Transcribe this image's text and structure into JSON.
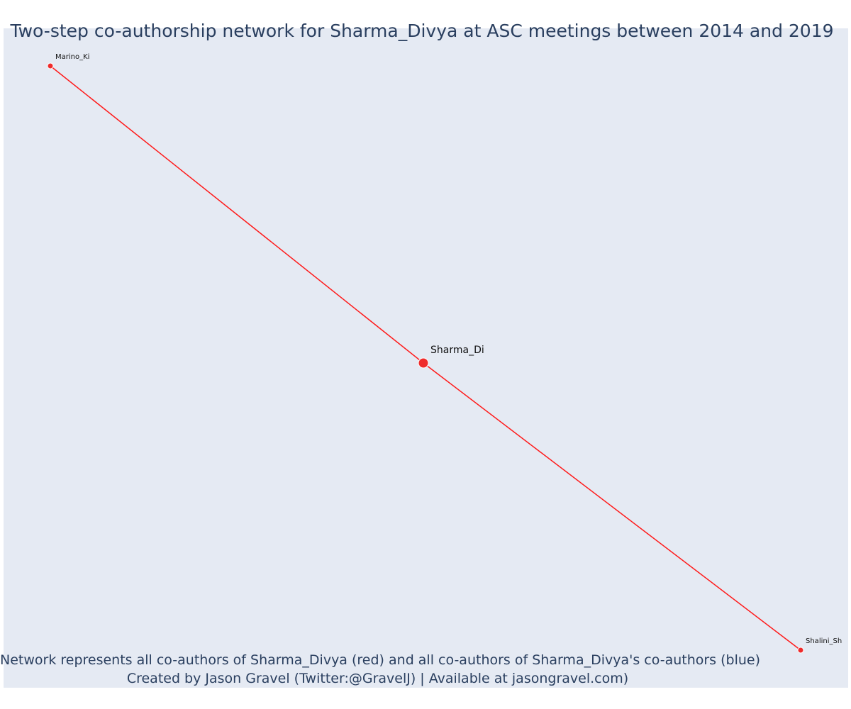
{
  "title": "Two-step co-authorship network for Sharma_Divya at ASC meetings between 2014 and 2019",
  "footer": {
    "line1": "Network represents all co-authors of Sharma_Divya (red) and all co-authors of Sharma_Divya's co-authors (blue)",
    "line2": "Created by Jason Gravel (Twitter:@GravelJ) | Available at jasongravel.com)"
  },
  "colors": {
    "background": "#e5eaf3",
    "edge": "#ff1a1a",
    "node": "#ef2b2b",
    "text": "#2a3f5f"
  },
  "network": {
    "nodes": [
      {
        "id": "Sharma_Di",
        "label": "Sharma_Di",
        "group": "focal"
      },
      {
        "id": "Marino_Ki",
        "label": "Marino_Ki",
        "group": "co-author"
      },
      {
        "id": "Shalini_Sh",
        "label": "Shalini_Sh",
        "group": "co-author"
      }
    ],
    "edges": [
      {
        "source": "Sharma_Di",
        "target": "Marino_Ki"
      },
      {
        "source": "Sharma_Di",
        "target": "Shalini_Sh"
      }
    ]
  }
}
